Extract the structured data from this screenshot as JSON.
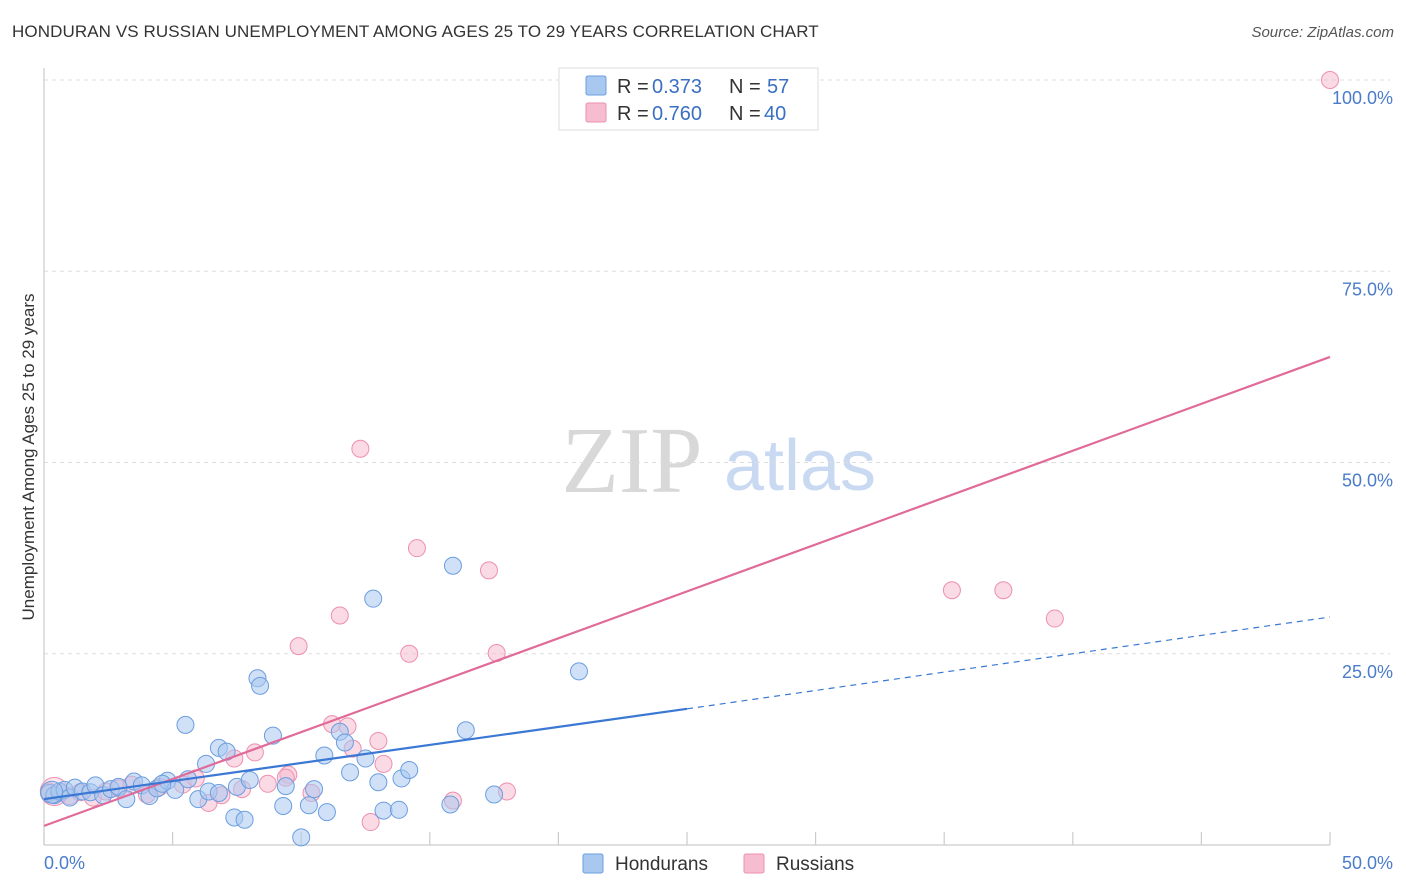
{
  "header": {
    "title": "HONDURAN VS RUSSIAN UNEMPLOYMENT AMONG AGES 25 TO 29 YEARS CORRELATION CHART",
    "source": "Source: ZipAtlas.com"
  },
  "watermark": {
    "zip": "ZIP",
    "atlas": "atlas"
  },
  "colors": {
    "hondurans_fill": "#a9c8f0",
    "hondurans_stroke": "#6b9ee0",
    "hondurans_line": "#3a78d4",
    "russians_fill": "#f6bcd0",
    "russians_stroke": "#ee8fb0",
    "russians_line": "#e06a98",
    "tick_text": "#4a7cc9",
    "grid": "#dddddd"
  },
  "stats_legend": {
    "rows": [
      {
        "r_label": "R =",
        "r_value": "0.373",
        "n_label": "N =",
        "n_value": "57"
      },
      {
        "r_label": "R =",
        "r_value": "0.760",
        "n_label": "N =",
        "n_value": "40"
      }
    ]
  },
  "chart_data": {
    "type": "scatter",
    "title": "HONDURAN VS RUSSIAN UNEMPLOYMENT AMONG AGES 25 TO 29 YEARS CORRELATION CHART",
    "xlabel": "",
    "ylabel": "Unemployment Among Ages 25 to 29 years",
    "xlim": [
      0,
      50
    ],
    "ylim": [
      0,
      100
    ],
    "x_tick_labels": [
      "0.0%",
      "50.0%"
    ],
    "y_ticks": [
      25,
      50,
      75,
      100
    ],
    "y_tick_labels": [
      "25.0%",
      "50.0%",
      "75.0%",
      "100.0%"
    ],
    "grid": true,
    "legend_position": "bottom-center",
    "series": [
      {
        "name": "Hondurans",
        "points": [
          [
            0.2,
            6.8
          ],
          [
            0.4,
            6.5
          ],
          [
            0.6,
            7.0
          ],
          [
            0.8,
            7.2
          ],
          [
            1.0,
            6.2
          ],
          [
            1.2,
            7.5
          ],
          [
            1.5,
            7.0
          ],
          [
            1.8,
            6.9
          ],
          [
            2.0,
            7.8
          ],
          [
            2.3,
            6.5
          ],
          [
            2.6,
            7.3
          ],
          [
            2.9,
            7.6
          ],
          [
            3.2,
            6.0
          ],
          [
            3.5,
            8.3
          ],
          [
            3.8,
            7.8
          ],
          [
            4.1,
            6.4
          ],
          [
            4.4,
            7.4
          ],
          [
            4.8,
            8.4
          ],
          [
            5.1,
            7.2
          ],
          [
            5.6,
            8.6
          ],
          [
            6.0,
            6.0
          ],
          [
            6.4,
            7.0
          ],
          [
            6.8,
            12.7
          ],
          [
            5.5,
            15.7
          ],
          [
            6.3,
            10.6
          ],
          [
            7.1,
            12.2
          ],
          [
            7.5,
            7.6
          ],
          [
            7.4,
            3.6
          ],
          [
            7.8,
            3.3
          ],
          [
            8.3,
            21.8
          ],
          [
            8.4,
            20.8
          ],
          [
            8.9,
            14.3
          ],
          [
            9.4,
            7.7
          ],
          [
            9.3,
            5.1
          ],
          [
            10.3,
            5.2
          ],
          [
            10.5,
            7.3
          ],
          [
            10.9,
            11.7
          ],
          [
            11.0,
            4.3
          ],
          [
            11.5,
            14.8
          ],
          [
            11.7,
            13.4
          ],
          [
            11.9,
            9.5
          ],
          [
            12.8,
            32.2
          ],
          [
            13.0,
            8.2
          ],
          [
            13.2,
            4.5
          ],
          [
            13.8,
            4.6
          ],
          [
            13.9,
            8.7
          ],
          [
            14.2,
            9.8
          ],
          [
            15.9,
            36.5
          ],
          [
            16.4,
            15.0
          ],
          [
            17.5,
            6.6
          ],
          [
            20.8,
            22.7
          ],
          [
            15.8,
            5.3
          ],
          [
            10.0,
            1.0
          ],
          [
            6.8,
            6.8
          ],
          [
            8.0,
            8.5
          ],
          [
            12.5,
            11.3
          ],
          [
            4.6,
            8.0
          ]
        ],
        "trend": {
          "x": [
            0.0,
            25.0
          ],
          "y": [
            6.0,
            17.8
          ]
        },
        "trend_extension": {
          "x": [
            25.0,
            50.0
          ],
          "y": [
            17.8,
            29.8
          ]
        }
      },
      {
        "name": "Russians",
        "points": [
          [
            0.2,
            7.0
          ],
          [
            0.6,
            6.8
          ],
          [
            1.0,
            6.4
          ],
          [
            1.4,
            6.9
          ],
          [
            1.9,
            6.2
          ],
          [
            2.4,
            7.0
          ],
          [
            2.9,
            7.4
          ],
          [
            3.4,
            7.9
          ],
          [
            4.0,
            6.6
          ],
          [
            4.5,
            7.6
          ],
          [
            5.4,
            7.9
          ],
          [
            5.9,
            8.7
          ],
          [
            6.4,
            5.5
          ],
          [
            6.9,
            6.5
          ],
          [
            7.4,
            11.3
          ],
          [
            7.7,
            7.3
          ],
          [
            8.2,
            12.1
          ],
          [
            8.7,
            8.0
          ],
          [
            9.5,
            9.2
          ],
          [
            9.4,
            8.8
          ],
          [
            10.4,
            6.8
          ],
          [
            11.2,
            15.8
          ],
          [
            11.8,
            15.5
          ],
          [
            12.0,
            12.6
          ],
          [
            12.3,
            51.8
          ],
          [
            12.7,
            3.0
          ],
          [
            13.2,
            10.6
          ],
          [
            13.0,
            13.6
          ],
          [
            11.5,
            30.0
          ],
          [
            9.9,
            26.0
          ],
          [
            14.2,
            25.0
          ],
          [
            14.5,
            38.8
          ],
          [
            15.9,
            5.8
          ],
          [
            17.3,
            35.9
          ],
          [
            17.6,
            25.1
          ],
          [
            18.0,
            7.0
          ],
          [
            35.3,
            33.3
          ],
          [
            37.3,
            33.3
          ],
          [
            39.3,
            29.6
          ],
          [
            50.0,
            100.0
          ]
        ],
        "trend": {
          "x": [
            0.0,
            50.0
          ],
          "y": [
            2.5,
            63.8
          ]
        }
      }
    ]
  },
  "bottom_legend": {
    "items": [
      {
        "label": "Hondurans"
      },
      {
        "label": "Russians"
      }
    ]
  }
}
